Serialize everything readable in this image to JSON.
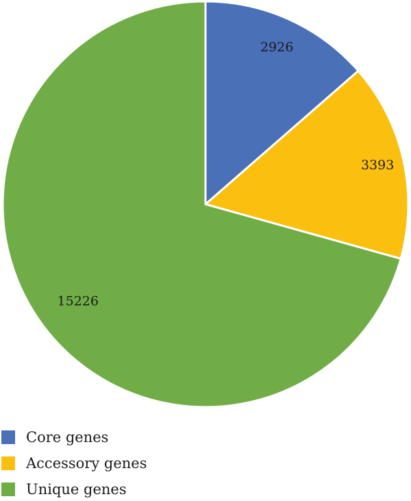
{
  "chart_data": {
    "type": "pie",
    "slices": [
      {
        "label": "Core genes",
        "value": 2926,
        "color": "#4a70b8"
      },
      {
        "label": "Accessory genes",
        "value": 3393,
        "color": "#fbbf10"
      },
      {
        "label": "Unique genes",
        "value": 15226,
        "color": "#70ad47"
      }
    ],
    "start_angle": "12 o'clock",
    "direction": "clockwise",
    "data_labels": true,
    "legend_position": "bottom-left"
  },
  "legend": {
    "items": [
      {
        "label": "Core genes",
        "color": "#4a70b8"
      },
      {
        "label": "Accessory genes",
        "color": "#fbbf10"
      },
      {
        "label": "Unique genes",
        "color": "#70ad47"
      }
    ]
  }
}
